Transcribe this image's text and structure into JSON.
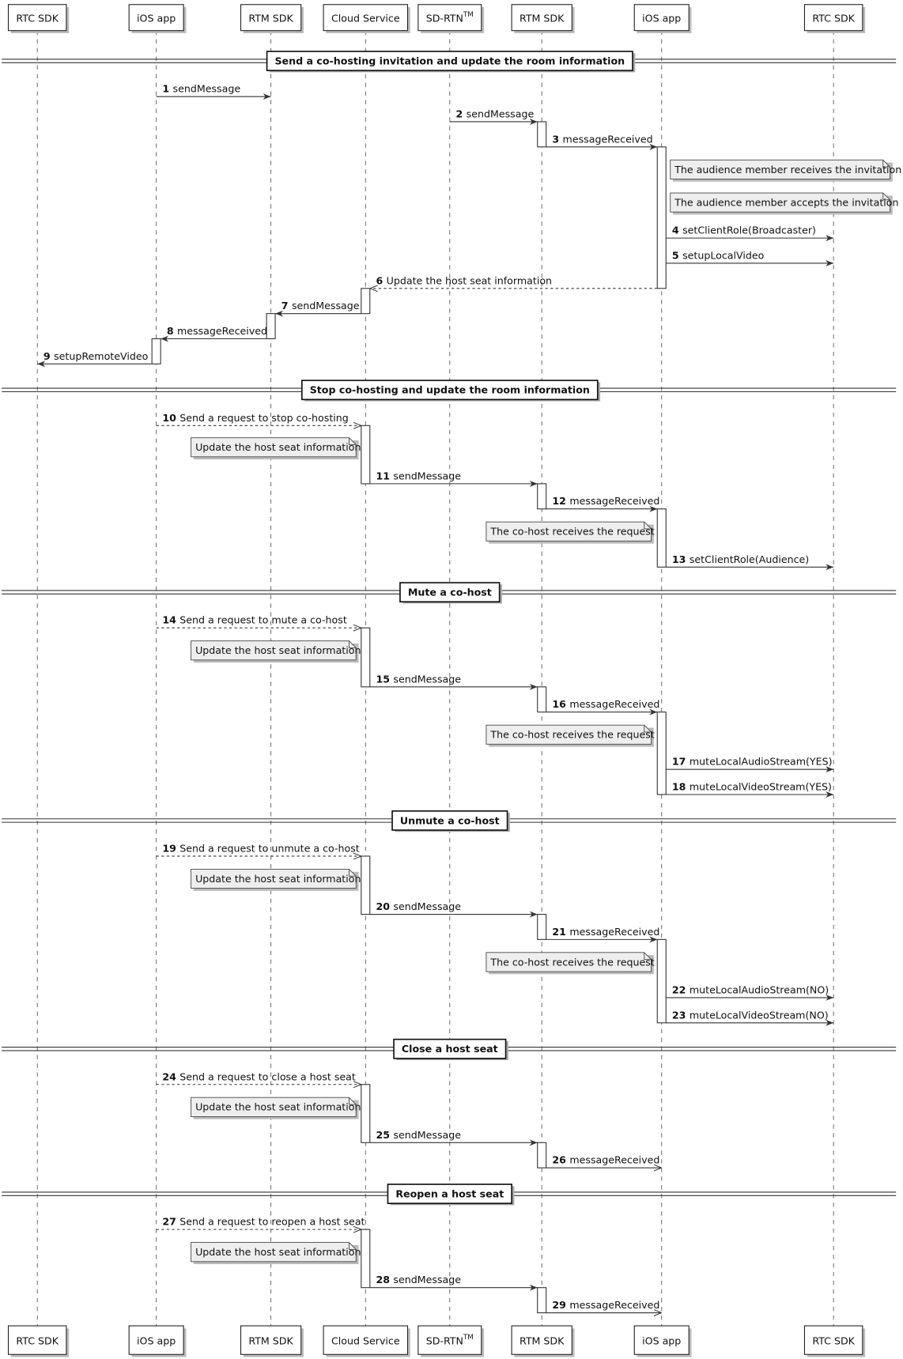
{
  "participants": [
    {
      "label": "RTC SDK"
    },
    {
      "label": "iOS app"
    },
    {
      "label": "RTM SDK"
    },
    {
      "label": "Cloud Service"
    },
    {
      "label": "SD-RTN",
      "sup": "TM"
    },
    {
      "label": "RTM SDK"
    },
    {
      "label": "iOS app"
    },
    {
      "label": "RTC SDK"
    }
  ],
  "sections": [
    {
      "title": "Send a co-hosting invitation and update the room information",
      "items": [
        {
          "num": "1",
          "text": "sendMessage"
        },
        {
          "num": "2",
          "text": "sendMessage"
        },
        {
          "num": "3",
          "text": "messageReceived"
        },
        {
          "note": "The audience member receives the invitation"
        },
        {
          "note": "The audience member accepts the invitation"
        },
        {
          "num": "4",
          "text": "setClientRole(Broadcaster)"
        },
        {
          "num": "5",
          "text": "setupLocalVideo"
        },
        {
          "num": "6",
          "text": "Update the host seat information"
        },
        {
          "num": "7",
          "text": "sendMessage"
        },
        {
          "num": "8",
          "text": "messageReceived"
        },
        {
          "num": "9",
          "text": "setupRemoteVideo"
        }
      ]
    },
    {
      "title": "Stop co-hosting and update the room information",
      "items": [
        {
          "num": "10",
          "text": "Send a request to stop co-hosting"
        },
        {
          "note": "Update the host seat information"
        },
        {
          "num": "11",
          "text": "sendMessage"
        },
        {
          "num": "12",
          "text": "messageReceived"
        },
        {
          "note": "The co-host receives the request"
        },
        {
          "num": "13",
          "text": "setClientRole(Audience)"
        }
      ]
    },
    {
      "title": "Mute a co-host",
      "items": [
        {
          "num": "14",
          "text": "Send a request to mute a co-host"
        },
        {
          "note": "Update the host seat information"
        },
        {
          "num": "15",
          "text": "sendMessage"
        },
        {
          "num": "16",
          "text": "messageReceived"
        },
        {
          "note": "The co-host receives the request"
        },
        {
          "num": "17",
          "text": "muteLocalAudioStream(YES)"
        },
        {
          "num": "18",
          "text": "muteLocalVideoStream(YES)"
        }
      ]
    },
    {
      "title": "Unmute a co-host",
      "items": [
        {
          "num": "19",
          "text": "Send a request to unmute a co-host"
        },
        {
          "note": "Update the host seat information"
        },
        {
          "num": "20",
          "text": "sendMessage"
        },
        {
          "num": "21",
          "text": "messageReceived"
        },
        {
          "note": "The co-host receives the request"
        },
        {
          "num": "22",
          "text": "muteLocalAudioStream(NO)"
        },
        {
          "num": "23",
          "text": "muteLocalVideoStream(NO)"
        }
      ]
    },
    {
      "title": "Close a host seat",
      "items": [
        {
          "num": "24",
          "text": "Send a request to close a host seat"
        },
        {
          "note": "Update the host seat information"
        },
        {
          "num": "25",
          "text": "sendMessage"
        },
        {
          "num": "26",
          "text": "messageReceived"
        }
      ]
    },
    {
      "title": "Reopen a host seat",
      "items": [
        {
          "num": "27",
          "text": "Send a request to reopen a host seat"
        },
        {
          "note": "Update the host seat information"
        },
        {
          "num": "28",
          "text": "sendMessage"
        },
        {
          "num": "29",
          "text": "messageReceived"
        }
      ]
    }
  ]
}
